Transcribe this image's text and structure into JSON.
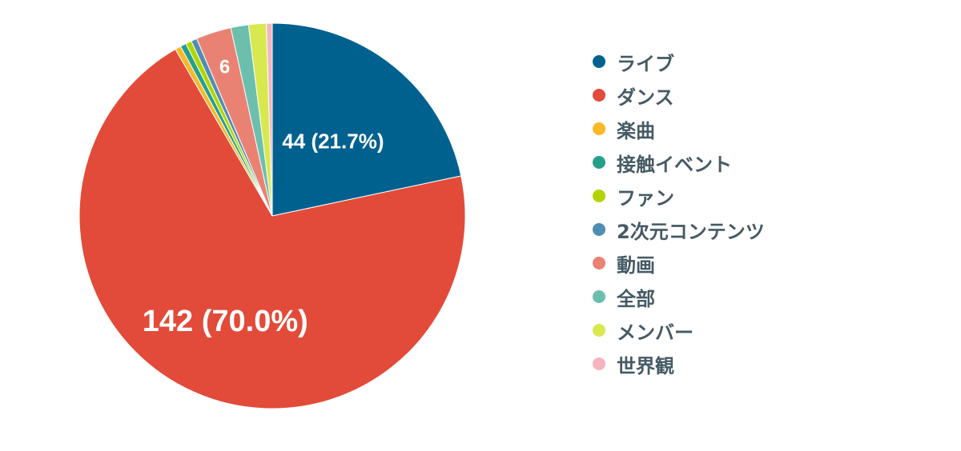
{
  "chart_data": {
    "type": "pie",
    "legend_position": "right",
    "slices": [
      {
        "name": "ライブ",
        "value": 44,
        "percent": 21.7,
        "color": "#00618f",
        "label": "44 (21.7%)"
      },
      {
        "name": "ダンス",
        "value": 142,
        "percent": 70.0,
        "color": "#e24b39",
        "label": "142 (70.0%)"
      },
      {
        "name": "楽曲",
        "value": 1,
        "percent": 0.5,
        "color": "#f9b825",
        "label": ""
      },
      {
        "name": "接触イベント",
        "value": 1,
        "percent": 0.5,
        "color": "#26a08a",
        "label": ""
      },
      {
        "name": "ファン",
        "value": 1,
        "percent": 0.5,
        "color": "#b3d400",
        "label": ""
      },
      {
        "name": "2次元コンテンツ",
        "value": 1,
        "percent": 0.5,
        "color": "#4f8db3",
        "label": ""
      },
      {
        "name": "動画",
        "value": 6,
        "percent": 3.0,
        "color": "#ea8273",
        "label": "6"
      },
      {
        "name": "全部",
        "value": 3,
        "percent": 1.5,
        "color": "#6cbfad",
        "label": ""
      },
      {
        "name": "メンバー",
        "value": 3,
        "percent": 1.5,
        "color": "#d7e94f",
        "label": ""
      },
      {
        "name": "世界観",
        "value": 1,
        "percent": 0.5,
        "color": "#f6b4c0",
        "label": ""
      }
    ]
  }
}
